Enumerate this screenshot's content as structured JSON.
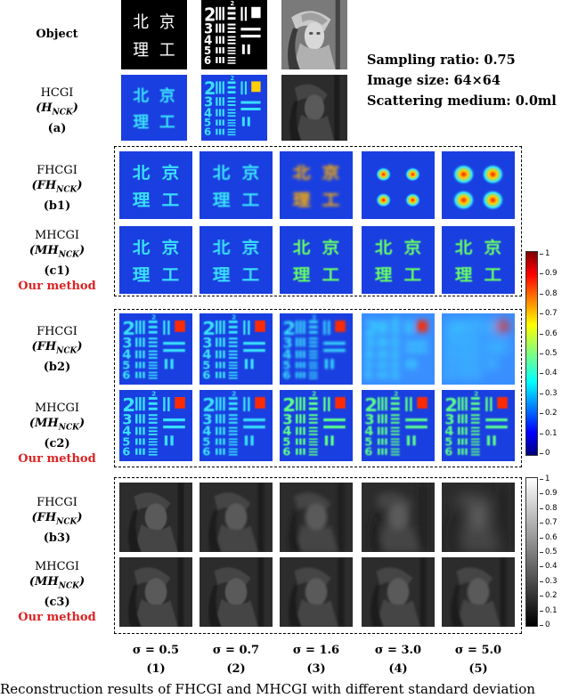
{
  "header": {
    "object_label": "Object",
    "info_lines": [
      "Sampling ratio: 0.75",
      "Image size: 64×64",
      "Scattering medium: 0.0ml"
    ],
    "chars": [
      "北",
      "京",
      "理",
      "工"
    ]
  },
  "rows": {
    "hcgi": {
      "name": "HCGI",
      "sym": "H",
      "sub": "NCK",
      "tag": "(a)"
    },
    "b1": {
      "name": "FHCGI",
      "sym": "FH",
      "sub": "NCK",
      "tag": "(b1)"
    },
    "c1": {
      "name": "MHCGI",
      "sym": "MH",
      "sub": "NCK",
      "tag": "(c1)",
      "ours": "Our method"
    },
    "b2": {
      "name": "FHCGI",
      "sym": "FH",
      "sub": "NCK",
      "tag": "(b2)"
    },
    "c2": {
      "name": "MHCGI",
      "sym": "MH",
      "sub": "NCK",
      "tag": "(c2)",
      "ours": "Our method"
    },
    "b3": {
      "name": "FHCGI",
      "sym": "FH",
      "sub": "NCK",
      "tag": "(b3)"
    },
    "c3": {
      "name": "MHCGI",
      "sym": "MH",
      "sub": "NCK",
      "tag": "(c3)",
      "ours": "Our method"
    }
  },
  "columns": [
    {
      "sigma": "σ = 0.5",
      "num": "(1)"
    },
    {
      "sigma": "σ = 0.7",
      "num": "(2)"
    },
    {
      "sigma": "σ = 1.6",
      "num": "(3)"
    },
    {
      "sigma": "σ = 3.0",
      "num": "(4)"
    },
    {
      "sigma": "σ = 5.0",
      "num": "(5)"
    }
  ],
  "colorbar_jet": {
    "ticks": [
      "1",
      "0.9",
      "0.8",
      "0.7",
      "0.6",
      "0.5",
      "0.4",
      "0.3",
      "0.2",
      "0.1",
      "0"
    ]
  },
  "colorbar_gray": {
    "ticks": [
      "1",
      "0.9",
      "0.8",
      "0.7",
      "0.6",
      "0.5",
      "0.4",
      "0.3",
      "0.2",
      "0.1",
      "0"
    ]
  },
  "caption": "Reconstruction results of FHCGI and MHCGI with different standard deviation",
  "colors": {
    "accent_red": "#dd2222",
    "jet_bg": "#1a3fe0",
    "jet_text": "#39e0ff"
  }
}
